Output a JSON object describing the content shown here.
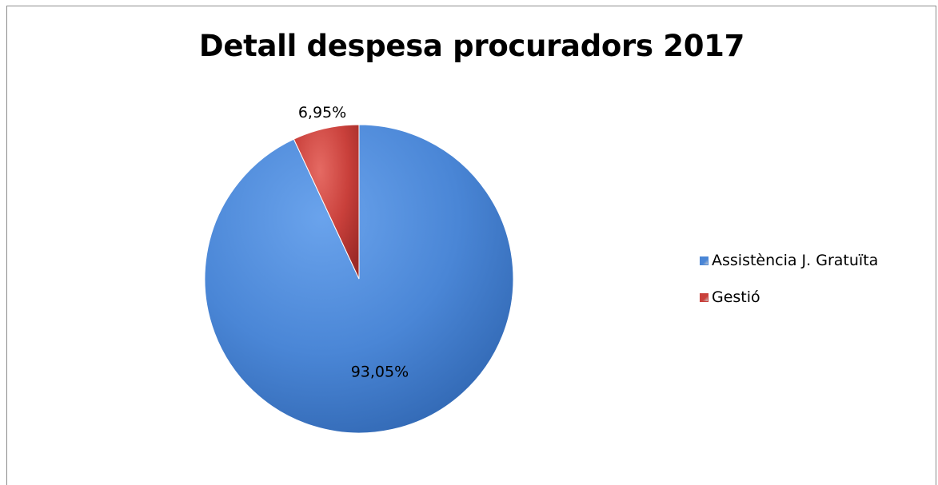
{
  "chart_data": {
    "type": "pie",
    "title": "Detall despesa procuradors 2017",
    "series": [
      {
        "categories": [
          "Assistència J. Gratuïta",
          "Gestió"
        ],
        "values": [
          93.05,
          6.95
        ],
        "labels": [
          "93,05%",
          "6,95%"
        ],
        "colors": [
          "#4a86d6",
          "#c9403b"
        ]
      }
    ],
    "legend_position": "right"
  }
}
